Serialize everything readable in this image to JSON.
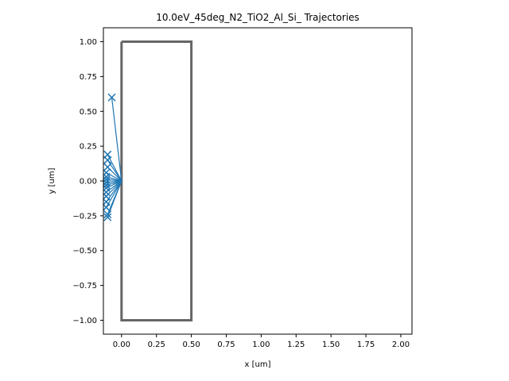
{
  "chart_data": {
    "type": "line",
    "title": "10.0eV_45deg_N2_TiO2_Al_Si_ Trajectories",
    "xlabel": "x [um]",
    "ylabel": "y [um]",
    "xlim": [
      -0.13,
      2.08
    ],
    "ylim": [
      -1.1,
      1.1
    ],
    "x_ticks": [
      0.0,
      0.25,
      0.5,
      0.75,
      1.0,
      1.25,
      1.5,
      1.75,
      2.0
    ],
    "x_tick_labels": [
      "0.00",
      "0.25",
      "0.50",
      "0.75",
      "1.00",
      "1.25",
      "1.50",
      "1.75",
      "2.00"
    ],
    "y_ticks": [
      1.0,
      0.75,
      0.5,
      0.25,
      0.0,
      -0.25,
      -0.5,
      -0.75,
      -1.0
    ],
    "y_tick_labels": [
      "1.00",
      "0.75",
      "0.50",
      "0.25",
      "0.00",
      "−0.25",
      "−0.50",
      "−0.75",
      "−1.00"
    ],
    "grid": false,
    "legend": "none",
    "structure": {
      "name": "",
      "color": "#666666",
      "x": [
        0.0,
        0.5,
        0.5,
        0.0,
        0.0
      ],
      "y": [
        1.0,
        1.0,
        -1.0,
        -1.0,
        1.0
      ]
    },
    "trajectory_color": "#1f77b4",
    "origin": [
      0.0,
      0.0
    ],
    "trajectory_endpoints": [
      {
        "x": -0.07,
        "y": 0.6
      },
      {
        "x": -0.1,
        "y": 0.19
      },
      {
        "x": -0.1,
        "y": 0.15
      },
      {
        "x": -0.1,
        "y": 0.1
      },
      {
        "x": -0.11,
        "y": 0.06
      },
      {
        "x": -0.11,
        "y": 0.03
      },
      {
        "x": -0.11,
        "y": 0.01
      },
      {
        "x": -0.11,
        "y": -0.01
      },
      {
        "x": -0.11,
        "y": -0.03
      },
      {
        "x": -0.11,
        "y": -0.05
      },
      {
        "x": -0.11,
        "y": -0.08
      },
      {
        "x": -0.11,
        "y": -0.11
      },
      {
        "x": -0.11,
        "y": -0.15
      },
      {
        "x": -0.11,
        "y": -0.19
      },
      {
        "x": -0.1,
        "y": -0.24
      },
      {
        "x": -0.1,
        "y": -0.26
      }
    ]
  }
}
